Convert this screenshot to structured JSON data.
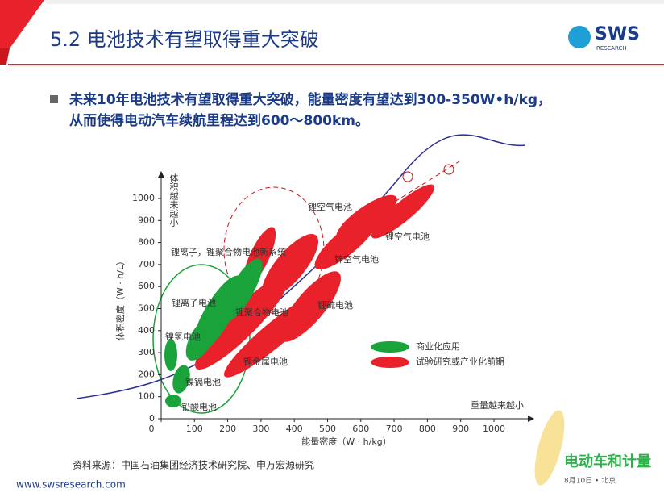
{
  "header": {
    "title": "5.2 电池技术有望取得重大突破",
    "logo": "SWS",
    "logo_sub": "RESEARCH"
  },
  "bullet": [
    "未来10年电池技术有望取得重大突破，能量密度有望达到300-350W•h/kg，",
    "从而使得电动汽车续航里程达到600～800km。"
  ],
  "chart_data": {
    "type": "region",
    "xlabel": "能量密度（W · h/kg）",
    "ylabel": "体积密度（W · h/L）",
    "x_arrow_label": "重量越来越小",
    "y_arrow_label": "体积越来越小",
    "xlim": [
      0,
      1000
    ],
    "ylim": [
      0,
      1000
    ],
    "xticks": [
      0,
      100,
      200,
      300,
      400,
      500,
      600,
      700,
      800,
      900,
      1000
    ],
    "yticks": [
      0,
      100,
      200,
      300,
      400,
      500,
      600,
      700,
      800,
      900,
      1000
    ],
    "annotations": [
      "锂空气电池",
      "锂空气电池",
      "锌空气电池",
      "锂离子，锂聚合物电池新系统",
      "锂离子电池",
      "锂聚合物电池",
      "锂硫电池",
      "镍氢电池",
      "锂金属电池",
      "镍镉电池",
      "铅酸电池"
    ],
    "legend": [
      {
        "name": "商业化应用",
        "color": "#1aa33a"
      },
      {
        "name": "试验研究或产业化前期",
        "color": "#e8212a"
      }
    ]
  },
  "source": "资料来源：中国石油集团经济技术研究院、申万宏源研究",
  "footer": "www.swsresearch.com",
  "corner_logo": {
    "title": "电动车和计量",
    "sub": "8月10日 • 北京"
  }
}
